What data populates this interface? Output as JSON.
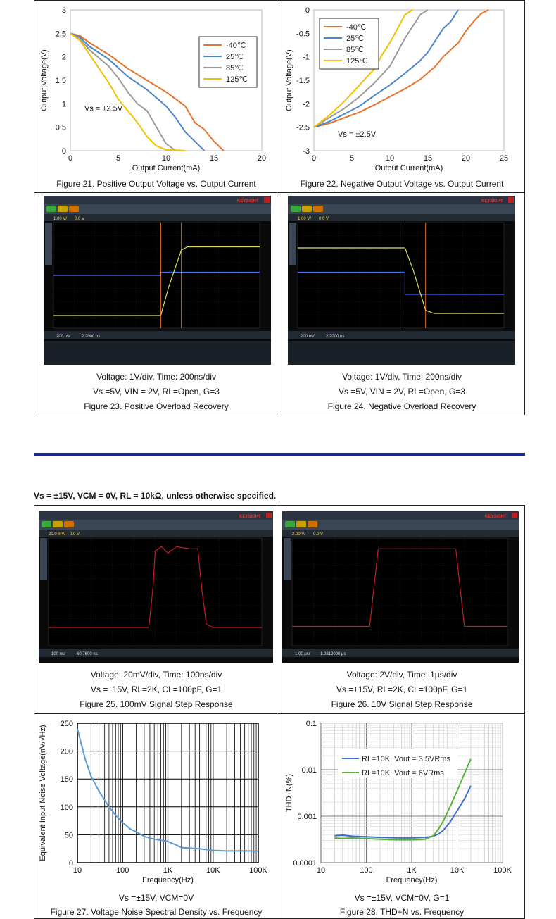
{
  "conditions_heading": "Vs = ±15V, VCM = 0V, RL = 10kΩ, unless otherwise specified.",
  "captions": {
    "fig21": "Figure 21. Positive Output Voltage vs. Output Current",
    "fig22": "Figure 22. Negative Output Voltage vs. Output Current",
    "fig23_line1": "Voltage: 1V/div, Time: 200ns/div",
    "fig23_line2": "Vs =5V, VIN = 2V, RL=Open, G=3",
    "fig23": "Figure 23. Positive Overload Recovery",
    "fig24_line1": "Voltage: 1V/div, Time: 200ns/div",
    "fig24_line2": "Vs =5V, VIN = 2V, RL=Open, G=3",
    "fig24": "Figure 24. Negative Overload Recovery",
    "fig25_line1": "Voltage: 20mV/div, Time: 100ns/div",
    "fig25_line2": "Vs =±15V, RL=2K, CL=100pF, G=1",
    "fig25": "Figure 25. 100mV Signal Step Response",
    "fig26_line1": "Voltage: 2V/div, Time: 1μs/div",
    "fig26_line2": "Vs =±15V, RL=2K, CL=100pF, G=1",
    "fig26": "Figure 26. 10V Signal Step Response",
    "fig27_line1": "Vs =±15V, VCM=0V",
    "fig27": "Figure 27. Voltage Noise Spectral Density vs. Frequency",
    "fig28_line1": "Vs =±15V, VCM=0V, G=1",
    "fig28": "Figure 28. THD+N vs. Frequency"
  },
  "scopes": {
    "fig23": {
      "brand": "KEYSIGHT",
      "timebase": "200 ns/",
      "offset": "2.2000 ns",
      "scale": "1.00 V/",
      "offset_v": "0.0 V"
    },
    "fig24": {
      "brand": "KEYSIGHT",
      "timebase": "200 ns/",
      "offset": "2.2000 ns",
      "scale": "1.00 V/",
      "offset_v": "0.0 V"
    },
    "fig25": {
      "brand": "KEYSIGHT",
      "timebase": "100 ns/",
      "offset": "60.7600 ns",
      "scale": "20.0 mV/",
      "offset_v": "0.0 V"
    },
    "fig26": {
      "brand": "KEYSIGHT",
      "timebase": "1.00 μs/",
      "offset": "1.2812000 μs",
      "scale": "2.00 V/",
      "offset_v": "0.0 V"
    }
  },
  "chart_data": [
    {
      "id": "fig21",
      "type": "line",
      "xlabel": "Output Current(mA)",
      "ylabel": "Output Voltage(V)",
      "xlim": [
        0,
        20
      ],
      "ylim": [
        0,
        3
      ],
      "xticks": [
        "0",
        "5",
        "10",
        "15",
        "20"
      ],
      "yticks": [
        "0",
        "0.5",
        "1",
        "1.5",
        "2",
        "2.5",
        "3"
      ],
      "annotation": "Vs = ±2.5V",
      "legend_position": "top-right",
      "series": [
        {
          "name": "-40℃",
          "color": "#e8722a",
          "x": [
            0,
            1,
            2,
            4,
            6,
            8,
            10,
            12,
            13,
            14,
            15,
            16
          ],
          "y": [
            2.5,
            2.45,
            2.3,
            2.05,
            1.75,
            1.5,
            1.25,
            0.95,
            0.6,
            0.45,
            0.2,
            0
          ]
        },
        {
          "name": "25℃",
          "color": "#4a86c8",
          "x": [
            0,
            1,
            2,
            4,
            6,
            8,
            10,
            11,
            12,
            13,
            14
          ],
          "y": [
            2.5,
            2.42,
            2.22,
            1.95,
            1.58,
            1.3,
            0.95,
            0.7,
            0.4,
            0.2,
            0
          ]
        },
        {
          "name": "85℃",
          "color": "#9a9a9a",
          "x": [
            0,
            1,
            2,
            4,
            5,
            6,
            7,
            8,
            9,
            10,
            11
          ],
          "y": [
            2.5,
            2.38,
            2.15,
            1.8,
            1.55,
            1.25,
            1.0,
            0.85,
            0.5,
            0.15,
            0
          ]
        },
        {
          "name": "125℃",
          "color": "#f2c000",
          "x": [
            0,
            1,
            2,
            3,
            4,
            5,
            6,
            7,
            8,
            9,
            10,
            12
          ],
          "y": [
            2.5,
            2.35,
            2.05,
            1.75,
            1.45,
            1.1,
            0.85,
            0.6,
            0.3,
            0.1,
            0.02,
            0
          ]
        }
      ]
    },
    {
      "id": "fig22",
      "type": "line",
      "xlabel": "Output Current(mA)",
      "ylabel": "Output Voltage(V)",
      "xlim": [
        0,
        25
      ],
      "ylim": [
        -3,
        0
      ],
      "xticks": [
        "0",
        "5",
        "10",
        "15",
        "20",
        "25"
      ],
      "yticks": [
        "0",
        "-0.5",
        "-1",
        "-1.5",
        "-2",
        "-2.5",
        "-3"
      ],
      "annotation": "Vs = ±2.5V",
      "legend_position": "top-left",
      "series": [
        {
          "name": "-40℃",
          "color": "#e8722a",
          "x": [
            0,
            2,
            4,
            6,
            8,
            10,
            12,
            14,
            16,
            17,
            18,
            19,
            20,
            21,
            22,
            23
          ],
          "y": [
            -2.5,
            -2.42,
            -2.3,
            -2.18,
            -2.02,
            -1.85,
            -1.68,
            -1.48,
            -1.2,
            -1.0,
            -0.85,
            -0.7,
            -0.45,
            -0.25,
            -0.08,
            0
          ]
        },
        {
          "name": "25℃",
          "color": "#4a86c8",
          "x": [
            0,
            2,
            4,
            6,
            8,
            10,
            12,
            14,
            15,
            16,
            17,
            18,
            19
          ],
          "y": [
            -2.5,
            -2.38,
            -2.22,
            -2.05,
            -1.82,
            -1.6,
            -1.35,
            -1.08,
            -0.9,
            -0.65,
            -0.4,
            -0.25,
            0
          ]
        },
        {
          "name": "85℃",
          "color": "#9a9a9a",
          "x": [
            0,
            2,
            4,
            6,
            8,
            10,
            11,
            12,
            13,
            14,
            15
          ],
          "y": [
            -2.5,
            -2.3,
            -2.1,
            -1.85,
            -1.55,
            -1.2,
            -0.9,
            -0.6,
            -0.35,
            -0.1,
            0
          ]
        },
        {
          "name": "125℃",
          "color": "#f2c000",
          "x": [
            0,
            2,
            4,
            6,
            8,
            9,
            10,
            11,
            12,
            13
          ],
          "y": [
            -2.5,
            -2.25,
            -1.95,
            -1.6,
            -1.25,
            -0.95,
            -0.7,
            -0.4,
            -0.1,
            0
          ]
        }
      ]
    },
    {
      "id": "fig27",
      "type": "line",
      "xlabel": "Frequency(Hz)",
      "ylabel": "Equivalent Input Noise Voltage(nV/√Hz)",
      "xscale": "log",
      "xlim": [
        10,
        100000
      ],
      "ylim": [
        0,
        250
      ],
      "xticks": [
        "10",
        "100",
        "1K",
        "10K",
        "100K"
      ],
      "yticks": [
        "0",
        "50",
        "100",
        "150",
        "200",
        "250"
      ],
      "series": [
        {
          "color": "#5b9bd5",
          "x": [
            10,
            12,
            15,
            20,
            30,
            50,
            70,
            100,
            150,
            200,
            300,
            500,
            700,
            1000,
            1500,
            2000,
            3000,
            5000,
            10000,
            20000,
            50000,
            100000
          ],
          "y": [
            240,
            215,
            185,
            155,
            128,
            100,
            85,
            72,
            60,
            55,
            47,
            42,
            40,
            38,
            32,
            27,
            26,
            25,
            22,
            21,
            21,
            21
          ]
        }
      ]
    },
    {
      "id": "fig28",
      "type": "line",
      "xlabel": "Frequency(Hz)",
      "ylabel": "THD+N(%)",
      "xscale": "log",
      "yscale": "log",
      "xlim": [
        10,
        100000
      ],
      "ylim": [
        0.0001,
        0.1
      ],
      "xticks": [
        "10",
        "100",
        "1K",
        "10K",
        "100K"
      ],
      "yticks": [
        "0.0001",
        "0.001",
        "0.01",
        "0.1"
      ],
      "legend_position": "top-left",
      "series": [
        {
          "name": "RL=10K, Vout = 3.5VRms",
          "color": "#3d6dcc",
          "x": [
            20,
            30,
            50,
            100,
            200,
            500,
            1000,
            2000,
            3000,
            4000,
            5000,
            7000,
            10000,
            15000,
            20000
          ],
          "y": [
            0.00038,
            0.00039,
            0.00037,
            0.00036,
            0.00035,
            0.00034,
            0.00034,
            0.00035,
            0.00037,
            0.00042,
            0.0005,
            0.00075,
            0.0013,
            0.0025,
            0.0045
          ]
        },
        {
          "name": "RL=10K, Vout = 6VRms",
          "color": "#58b13a",
          "x": [
            20,
            30,
            50,
            100,
            200,
            500,
            1000,
            2000,
            3000,
            4000,
            5000,
            7000,
            10000,
            15000,
            20000
          ],
          "y": [
            0.00034,
            0.00033,
            0.00034,
            0.00033,
            0.00032,
            0.00031,
            0.00031,
            0.00032,
            0.00038,
            0.00055,
            0.0008,
            0.0016,
            0.0035,
            0.009,
            0.017
          ]
        }
      ]
    }
  ]
}
